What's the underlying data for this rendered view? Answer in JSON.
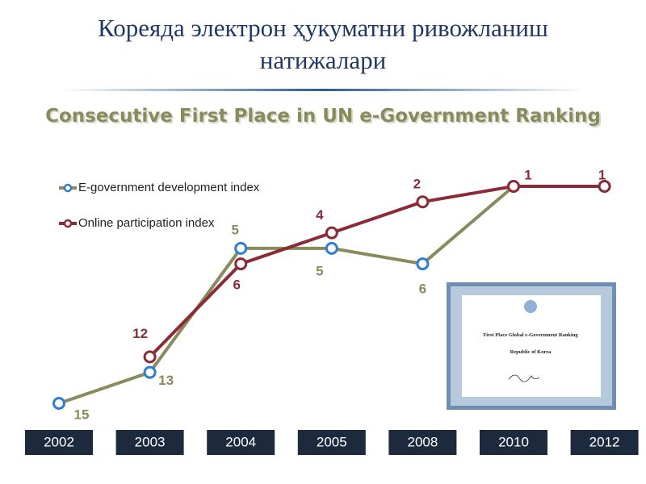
{
  "header": {
    "title_lines": [
      "Кореяда электрон ҳукуматни ривожланиш",
      "натижалари"
    ],
    "subtitle": "Consecutive First Place in UN e-Government Ranking"
  },
  "chart_data": {
    "type": "line",
    "categories": [
      "2002",
      "2003",
      "2004",
      "2005",
      "2008",
      "2010",
      "2012"
    ],
    "ylim": [
      15,
      1
    ],
    "legend": "top-left",
    "series": [
      {
        "name": "E-government development index",
        "color": "#8a8b5c",
        "marker_color": "#2f7fd1",
        "values": [
          15,
          13,
          5,
          5,
          6,
          1,
          1
        ]
      },
      {
        "name": "Online participation index",
        "color": "#8b2b36",
        "marker_color": "#8b2b36",
        "values": [
          null,
          12,
          6,
          4,
          2,
          1,
          1
        ]
      }
    ]
  },
  "certificate": {
    "lines": [
      "First Place Global e-Government Ranking",
      "Republic of Korea"
    ]
  }
}
